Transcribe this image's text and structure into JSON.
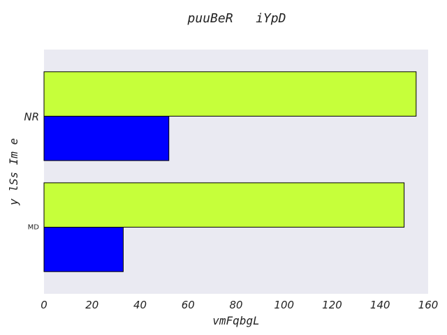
{
  "chart_data": {
    "type": "bar",
    "orientation": "horizontal",
    "title": "puuBeR   iYpD",
    "xlabel": "vmFqbgL",
    "ylabel": "y lSs Im e",
    "categories": [
      "MD",
      "NR"
    ],
    "series": [
      {
        "color": "#0000ff",
        "values": [
          33,
          52
        ]
      },
      {
        "color": "#c6ff3a",
        "values": [
          150,
          155
        ]
      }
    ],
    "xlim": [
      0,
      160
    ],
    "xticks": [
      "0",
      "20",
      "40",
      "60",
      "80",
      "100",
      "120",
      "140",
      "160"
    ],
    "grid": false,
    "legend": "none",
    "background": "#eaeaf2"
  }
}
